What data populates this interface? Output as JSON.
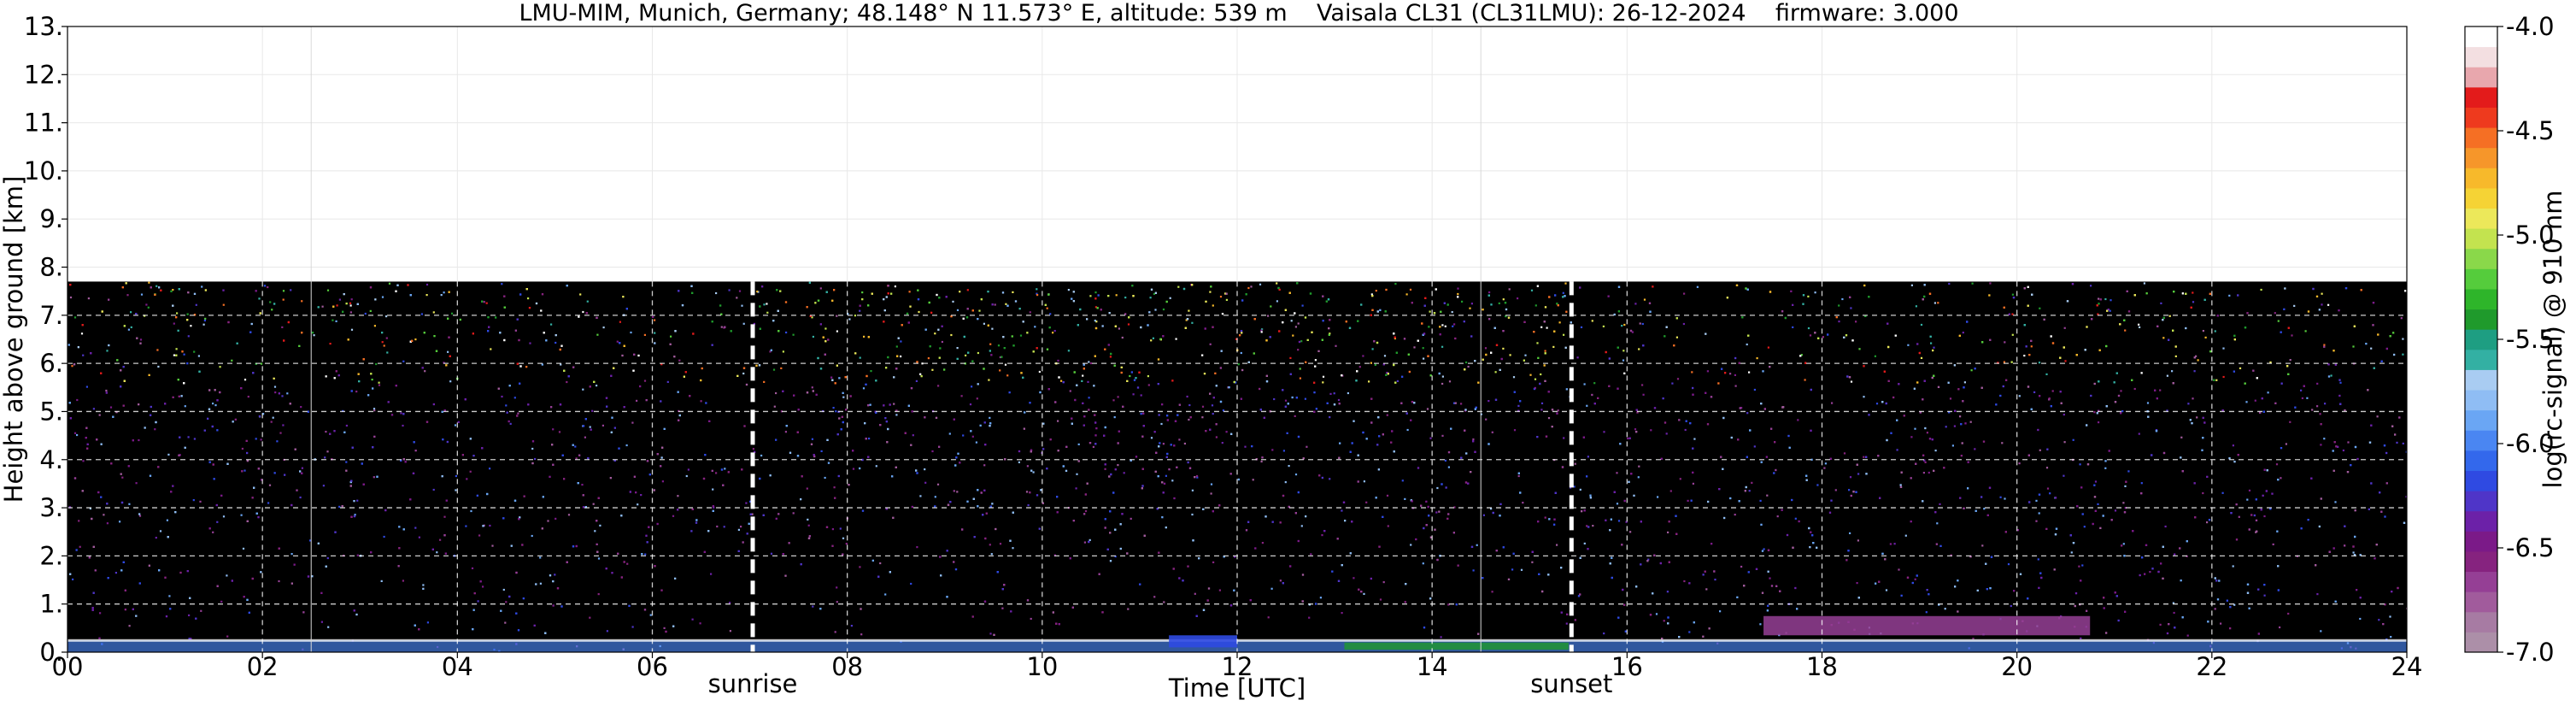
{
  "chart_data": {
    "type": "heatmap",
    "title": "LMU-MIM, Munich, Germany; 48.148° N 11.573° E, altitude: 539 m    Vaisala CL31 (CL31LMU): 26-12-2024    firmware: 3.000",
    "xlabel": "Time [UTC]",
    "ylabel": "Height above ground [km]",
    "xlim": [
      0,
      24
    ],
    "ylim": [
      0,
      13
    ],
    "x_ticks": [
      "00",
      "02",
      "04",
      "06",
      "08",
      "10",
      "12",
      "14",
      "16",
      "18",
      "20",
      "22",
      "24"
    ],
    "y_ticks": [
      "0.",
      "1.",
      "2.",
      "3.",
      "4.",
      "5.",
      "6.",
      "7.",
      "8.",
      "9.",
      "10.",
      "11.",
      "12.",
      "13."
    ],
    "grid": true,
    "data_top_height_km": 7.7,
    "markers": [
      {
        "label": "sunrise",
        "time_utc": 7.03
      },
      {
        "label": "sunset",
        "time_utc": 15.43
      }
    ],
    "faint_vertical_lines_utc": [
      2.5,
      14.5
    ],
    "colorbar": {
      "label": "log(rc-signal) @ 910 nm",
      "range": [
        -7.0,
        -4.0
      ],
      "ticks": [
        "-4.0",
        "-4.5",
        "-5.0",
        "-5.5",
        "-6.0",
        "-6.5",
        "-7.0"
      ],
      "colors_low_to_high": [
        "#ac8fa8",
        "#a77ba3",
        "#a15b9c",
        "#953f95",
        "#86237f",
        "#7b1a88",
        "#6c21a8",
        "#4f35c8",
        "#2f4ae2",
        "#3368ec",
        "#4a86f2",
        "#6aa6f4",
        "#8fbdf4",
        "#a9ccf2",
        "#33b0a3",
        "#1e9e82",
        "#1f9a2c",
        "#2eb52a",
        "#55cc3c",
        "#8ad84a",
        "#c3e34f",
        "#ece85a",
        "#f5d335",
        "#f7b92b",
        "#f6962a",
        "#f56f24",
        "#ee3a1e",
        "#e31b1b",
        "#e8a7ad",
        "#f3dfe1",
        "#ffffff"
      ]
    },
    "background_color": "#000000"
  }
}
